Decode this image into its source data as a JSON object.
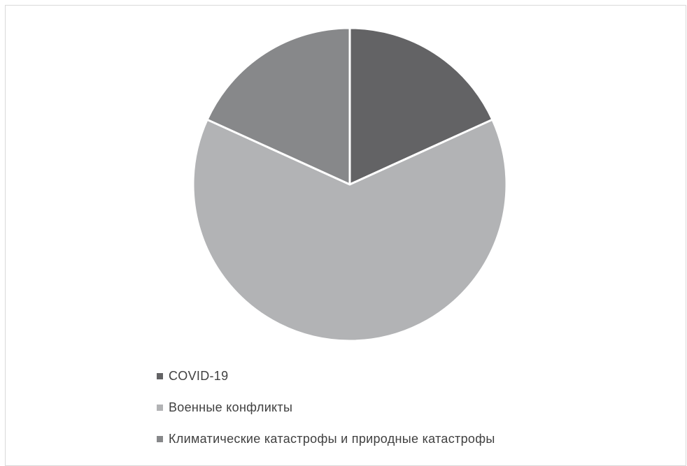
{
  "chart_data": {
    "type": "pie",
    "title": "",
    "categories": [
      "COVID-19",
      "Военные конфликты",
      "Климатические катастрофы и природные катастрофы"
    ],
    "values": [
      18.2,
      63.6,
      18.2
    ],
    "colors": [
      "#636365",
      "#B2B3B5",
      "#87888A"
    ],
    "start_angle_deg": 0,
    "direction": "clockwise",
    "slice_border_color": "#FFFFFF",
    "legend_position": "bottom"
  }
}
